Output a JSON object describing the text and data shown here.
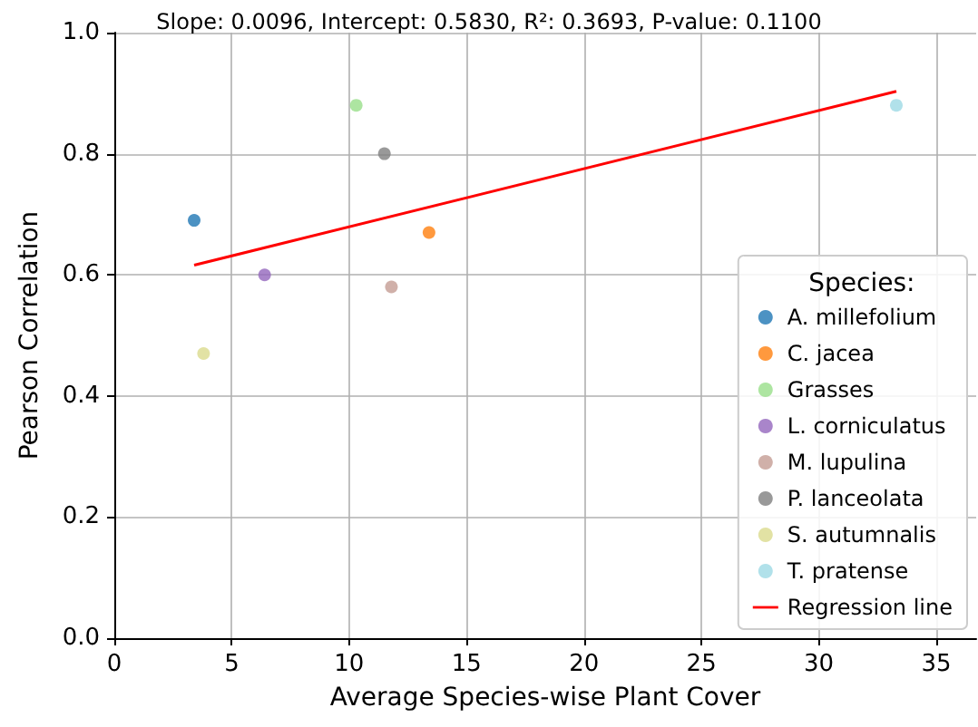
{
  "chart_data": {
    "type": "scatter",
    "title": "Slope: 0.0096, Intercept: 0.5830, R²: 0.3693, P-value: 0.1100",
    "xlabel": "Average Species-wise Plant Cover",
    "ylabel": "Pearson Correlation",
    "legend_title": "Species:",
    "series": [
      {
        "name": "A. millefolium",
        "color": "#1f77b4",
        "x": [
          3.4
        ],
        "values": [
          0.69
        ]
      },
      {
        "name": "C. jacea",
        "color": "#ff7f0e",
        "x": [
          13.4
        ],
        "values": [
          0.67
        ]
      },
      {
        "name": "Grasses",
        "color": "#98df8a",
        "x": [
          10.3
        ],
        "values": [
          0.88
        ]
      },
      {
        "name": "L. corniculatus",
        "color": "#9467bd",
        "x": [
          6.4
        ],
        "values": [
          0.6
        ]
      },
      {
        "name": "M. lupulina",
        "color": "#c49c94",
        "x": [
          11.8
        ],
        "values": [
          0.58
        ]
      },
      {
        "name": "P. lanceolata",
        "color": "#7f7f7f",
        "x": [
          11.5
        ],
        "values": [
          0.8
        ]
      },
      {
        "name": "S. autumnalis",
        "color": "#dbdb8d",
        "x": [
          3.8
        ],
        "values": [
          0.47
        ]
      },
      {
        "name": "T. pratense",
        "color": "#9edae5",
        "x": [
          33.3
        ],
        "values": [
          0.88
        ]
      },
      {
        "name": "Regression line",
        "type": "line",
        "marker": "none",
        "color": "#ff0000",
        "x": [
          3.4,
          33.3
        ],
        "values": [
          0.616,
          0.903
        ]
      }
    ],
    "xlim": [
      0,
      36.7
    ],
    "xticks": [
      0,
      5,
      10,
      15,
      20,
      25,
      30,
      35
    ],
    "ylim": [
      0,
      1
    ],
    "yticks": [
      {
        "value": 0,
        "label": "0.0"
      },
      0.2,
      0.4,
      0.6,
      0.8,
      {
        "value": 1,
        "label": "1.0"
      }
    ],
    "grid": true,
    "legend": "bottom right",
    "marker": "circle"
  }
}
